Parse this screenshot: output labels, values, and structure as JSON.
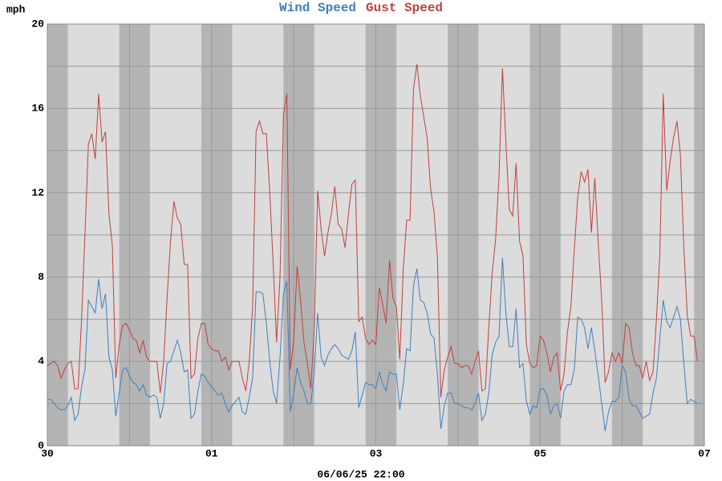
{
  "chart_data": {
    "type": "line",
    "y_label": "mph",
    "x_label": "06/06/25 22:00",
    "x": [
      0,
      1,
      2,
      3,
      4,
      5,
      6,
      7,
      8,
      9,
      10,
      11,
      12,
      13,
      14,
      15,
      16,
      17,
      18,
      19,
      20,
      21,
      22,
      23,
      24,
      25,
      26,
      27,
      28,
      29,
      30,
      31,
      32,
      33,
      34,
      35,
      36,
      37,
      38,
      39,
      40,
      41,
      42,
      43,
      44,
      45,
      46,
      47,
      48,
      49,
      50,
      51,
      52,
      53,
      54,
      55,
      56,
      57,
      58,
      59,
      60,
      61,
      62,
      63,
      64,
      65,
      66,
      67,
      68,
      69,
      70,
      71,
      72,
      73,
      74,
      75,
      76,
      77,
      78,
      79,
      80,
      81,
      82,
      83,
      84,
      85,
      86,
      87,
      88,
      89,
      90,
      91,
      92,
      93,
      94,
      95,
      96,
      97,
      98,
      99,
      100,
      101,
      102,
      103,
      104,
      105,
      106,
      107,
      108,
      109,
      110,
      111,
      112,
      113,
      114,
      115,
      116,
      117,
      118,
      119,
      120,
      121,
      122,
      123,
      124,
      125,
      126,
      127,
      128,
      129,
      130,
      131,
      132,
      133,
      134,
      135,
      136,
      137,
      138,
      139,
      140,
      141,
      142,
      143,
      144,
      145,
      146,
      147,
      148,
      149,
      150,
      151,
      152,
      153,
      154,
      155,
      156,
      157,
      158,
      159,
      160,
      161,
      162,
      163,
      164,
      165,
      166,
      167,
      168,
      169,
      170,
      171,
      172,
      173,
      174,
      175,
      176,
      177,
      178,
      179,
      180,
      181,
      182,
      183,
      184,
      185,
      186,
      187,
      188,
      189,
      190
    ],
    "series": [
      {
        "name": "Wind Speed",
        "color": "#3f7fbf",
        "values": [
          2.2,
          2.2,
          2.0,
          1.8,
          1.7,
          1.7,
          1.9,
          2.3,
          1.2,
          1.5,
          2.8,
          3.6,
          6.9,
          6.6,
          6.3,
          7.9,
          6.5,
          7.2,
          4.2,
          3.6,
          1.4,
          2.5,
          3.6,
          3.7,
          3.3,
          3.0,
          2.9,
          2.6,
          2.9,
          2.4,
          2.3,
          2.4,
          2.3,
          1.3,
          2.0,
          3.9,
          4.0,
          4.5,
          5.0,
          4.4,
          3.5,
          3.6,
          1.3,
          1.5,
          2.6,
          3.4,
          3.3,
          3.0,
          2.8,
          2.6,
          2.4,
          2.5,
          2.0,
          1.6,
          1.9,
          2.1,
          2.3,
          1.6,
          1.5,
          2.3,
          3.2,
          7.3,
          7.3,
          7.2,
          5.8,
          4.0,
          2.6,
          2.0,
          4.2,
          7.2,
          7.8,
          1.6,
          2.5,
          3.7,
          3.0,
          2.6,
          2.0,
          2.0,
          3.5,
          6.3,
          4.2,
          3.8,
          4.3,
          4.6,
          4.8,
          4.6,
          4.3,
          4.2,
          4.1,
          4.5,
          5.4,
          1.8,
          2.4,
          3.0,
          2.9,
          2.9,
          2.7,
          3.5,
          2.9,
          2.6,
          3.5,
          3.4,
          3.4,
          1.7,
          2.9,
          4.6,
          4.5,
          7.6,
          8.4,
          6.9,
          6.8,
          6.3,
          5.3,
          5.1,
          3.4,
          0.8,
          1.9,
          2.5,
          2.5,
          2.0,
          2.0,
          1.9,
          1.8,
          1.8,
          1.7,
          2.0,
          2.5,
          1.2,
          1.5,
          2.5,
          4.3,
          4.9,
          5.2,
          8.9,
          6.3,
          4.7,
          4.7,
          6.5,
          3.7,
          3.9,
          2.1,
          1.5,
          1.9,
          1.8,
          2.7,
          2.7,
          2.4,
          1.5,
          1.9,
          2.0,
          1.3,
          2.6,
          2.9,
          2.9,
          3.6,
          6.1,
          6.0,
          5.6,
          4.6,
          5.6,
          4.5,
          3.3,
          2.0,
          0.7,
          1.6,
          2.1,
          2.1,
          2.3,
          3.8,
          3.5,
          2.2,
          1.9,
          1.9,
          1.6,
          1.3,
          1.4,
          1.5,
          2.5,
          3.2,
          5.1,
          6.9,
          5.9,
          5.6,
          6.1,
          6.6,
          6.0,
          3.9,
          2.0,
          2.2,
          2.1,
          2.0
        ]
      },
      {
        "name": "Gust Speed",
        "color": "#c04040",
        "values": [
          3.8,
          3.9,
          4.0,
          3.8,
          3.2,
          3.6,
          3.9,
          4.0,
          2.7,
          2.7,
          6.0,
          10.0,
          14.3,
          14.8,
          13.6,
          16.7,
          14.4,
          14.9,
          11.0,
          9.5,
          3.2,
          4.8,
          5.7,
          5.8,
          5.5,
          5.1,
          5.0,
          4.4,
          5.0,
          4.2,
          4.0,
          4.0,
          4.0,
          2.5,
          4.0,
          7.0,
          9.7,
          11.6,
          10.8,
          10.5,
          8.6,
          8.6,
          3.2,
          3.4,
          5.1,
          5.8,
          5.8,
          4.8,
          4.6,
          4.5,
          4.5,
          4.0,
          4.2,
          3.6,
          4.0,
          4.0,
          4.0,
          3.2,
          2.6,
          4.0,
          6.6,
          14.9,
          15.4,
          14.8,
          14.8,
          12.0,
          8.6,
          4.9,
          8.0,
          15.7,
          16.7,
          3.6,
          5.0,
          8.5,
          6.9,
          4.9,
          3.9,
          2.7,
          5.5,
          12.1,
          10.3,
          9.0,
          10.1,
          11.0,
          12.3,
          10.5,
          10.3,
          9.4,
          11.0,
          12.4,
          12.6,
          5.9,
          6.1,
          5.1,
          4.8,
          5.0,
          4.8,
          7.5,
          6.7,
          5.8,
          8.8,
          7.0,
          6.6,
          4.1,
          8.3,
          10.7,
          10.7,
          16.9,
          18.1,
          16.6,
          15.6,
          14.6,
          12.2,
          11.1,
          8.9,
          2.3,
          3.6,
          4.2,
          4.7,
          3.9,
          3.9,
          3.7,
          3.8,
          3.8,
          3.4,
          4.0,
          4.5,
          2.6,
          2.7,
          5.6,
          8.2,
          9.8,
          12.8,
          17.9,
          14.4,
          11.2,
          10.9,
          13.4,
          9.7,
          9.0,
          4.8,
          3.9,
          3.7,
          3.8,
          5.2,
          5.0,
          4.4,
          3.5,
          4.2,
          4.4,
          2.6,
          3.4,
          5.4,
          6.6,
          9.3,
          11.8,
          13.0,
          12.5,
          13.1,
          10.1,
          12.7,
          9.6,
          6.9,
          3.0,
          3.5,
          4.4,
          4.0,
          4.4,
          3.9,
          5.8,
          5.6,
          4.4,
          3.8,
          3.8,
          3.2,
          4.0,
          3.1,
          3.5,
          6.0,
          9.1,
          16.7,
          12.1,
          13.5,
          14.6,
          15.4,
          13.8,
          9.4,
          6.2,
          5.2,
          5.2,
          4.0
        ]
      }
    ],
    "xlim": [
      0,
      192
    ],
    "xticks": [
      {
        "value": 0,
        "label": "30"
      },
      {
        "value": 48,
        "label": "01"
      },
      {
        "value": 96,
        "label": "03"
      },
      {
        "value": 144,
        "label": "05"
      },
      {
        "value": 192,
        "label": "07"
      }
    ],
    "minor_xticks": [
      24,
      72,
      120,
      168
    ],
    "ylim": [
      0,
      20
    ],
    "yticks": [
      0,
      4,
      8,
      12,
      16,
      20
    ],
    "minor_yticks": [
      2,
      6,
      10,
      14,
      18
    ],
    "grid": true,
    "shaded_x_ranges": [
      [
        0,
        6
      ],
      [
        21,
        30
      ],
      [
        45,
        54
      ],
      [
        69,
        78
      ],
      [
        93,
        102
      ],
      [
        117,
        126
      ],
      [
        141,
        150
      ],
      [
        165,
        174
      ],
      [
        189,
        192
      ]
    ],
    "background_color": "#dcdcdc",
    "shade_color": "#b4b4b4"
  }
}
